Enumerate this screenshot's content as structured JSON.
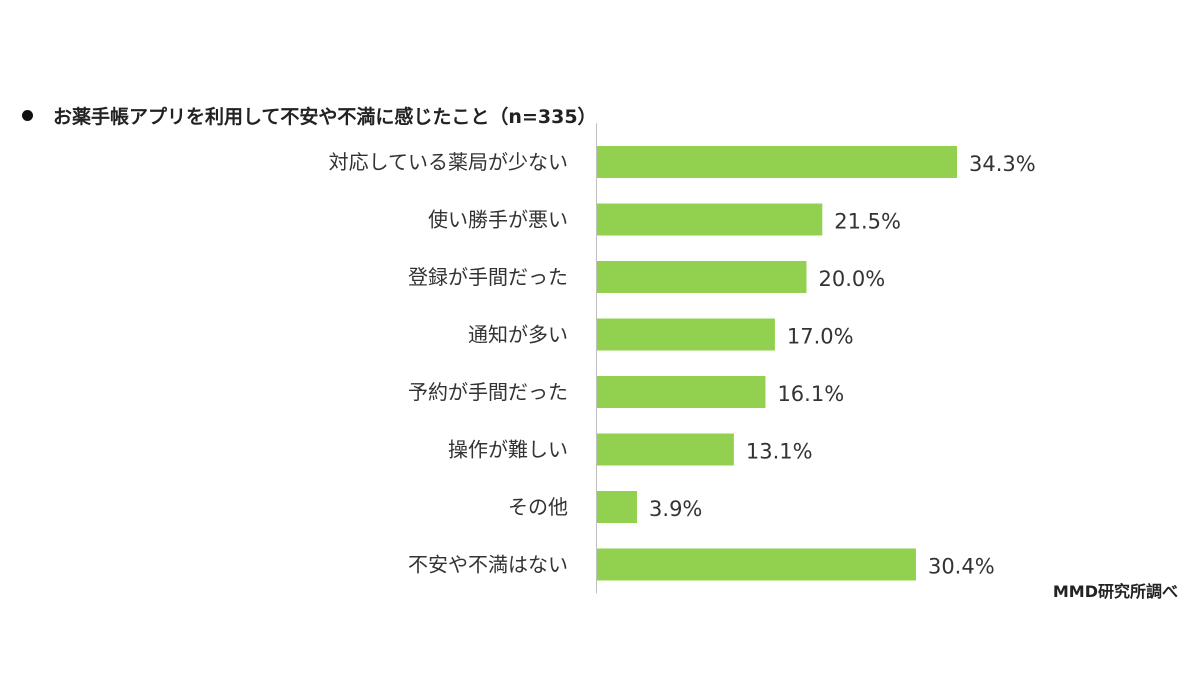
{
  "title": "お薬手帳アプリを利用して不安や不満に感じたこと（n=335）",
  "source": "MMD研究所調べ",
  "colors": {
    "bar": "#92d050",
    "axis": "#bfbfbf",
    "bullet": "#111111"
  },
  "chart_data": {
    "type": "bar",
    "orientation": "horizontal",
    "categories": [
      "対応している薬局が少ない",
      "使い勝手が悪い",
      "登録が手間だった",
      "通知が多い",
      "予約が手間だった",
      "操作が難しい",
      "その他",
      "不安や不満はない"
    ],
    "values": [
      34.3,
      21.5,
      20.0,
      17.0,
      16.1,
      13.1,
      3.9,
      30.4
    ],
    "value_labels": [
      "34.3%",
      "21.5%",
      "20.0%",
      "17.0%",
      "16.1%",
      "13.1%",
      "3.9%",
      "30.4%"
    ],
    "unit": "%",
    "xlim": [
      0,
      34.3
    ],
    "grid": false,
    "legend": "none"
  }
}
